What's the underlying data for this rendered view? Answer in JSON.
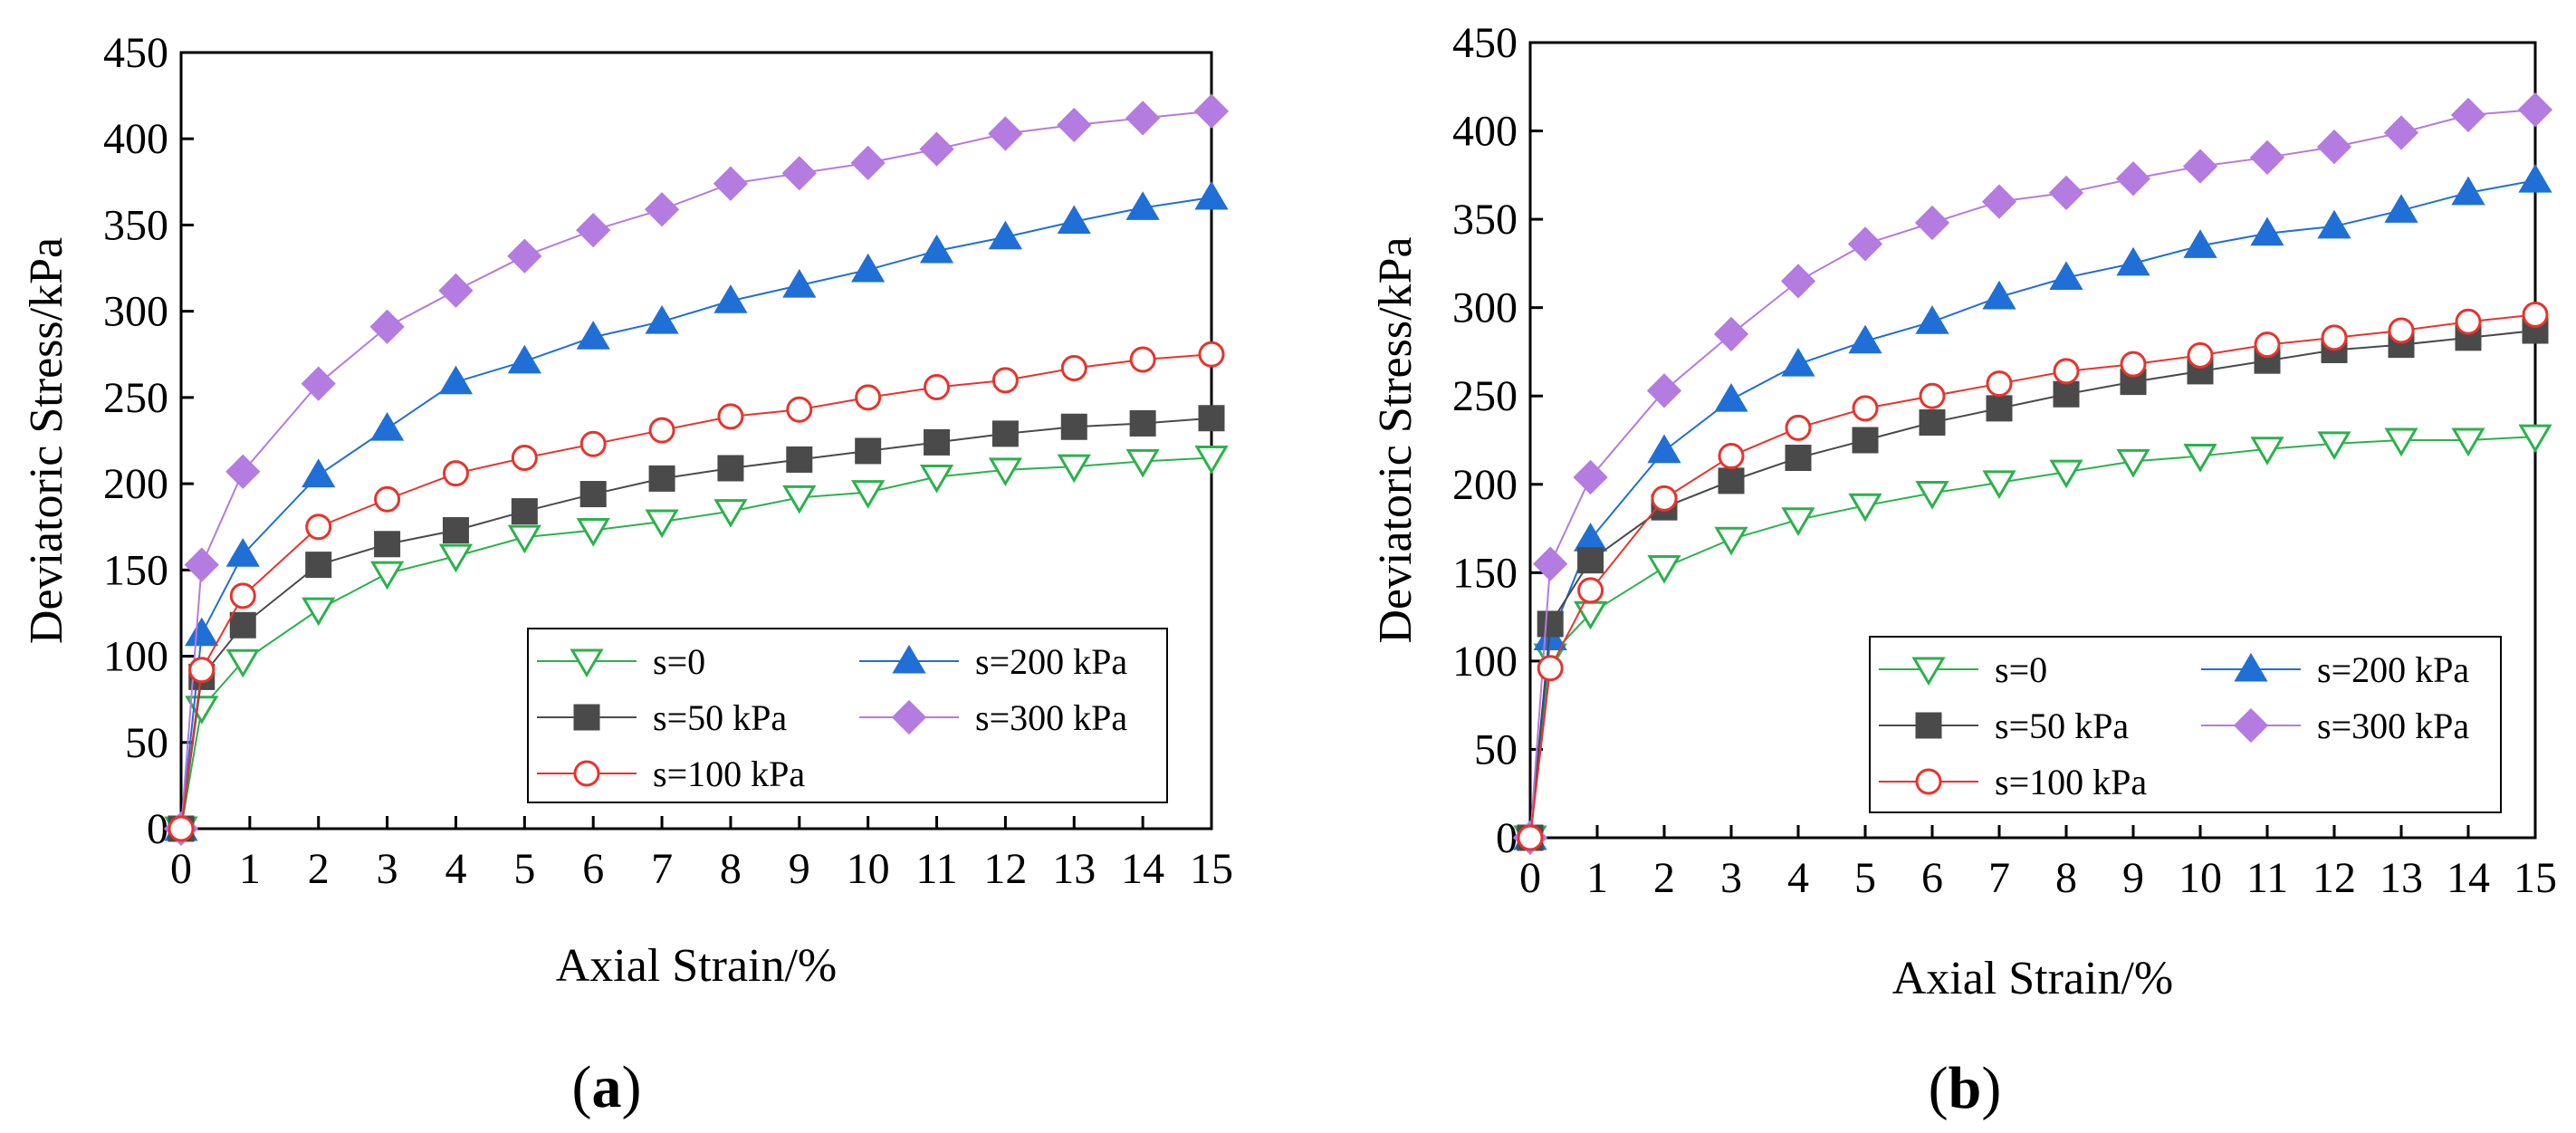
{
  "chart_data": [
    {
      "panel": "a",
      "type": "line",
      "xlabel": "Axial Strain/%",
      "ylabel": "Deviatoric Stress/kPa",
      "xlim": [
        0,
        15
      ],
      "ylim": [
        0,
        450
      ],
      "xticks": [
        "0",
        "1",
        "2",
        "3",
        "4",
        "5",
        "6",
        "7",
        "8",
        "9",
        "10",
        "11",
        "12",
        "13",
        "14",
        "15"
      ],
      "yticks": [
        "0",
        "50",
        "100",
        "150",
        "200",
        "250",
        "300",
        "350",
        "400",
        "450"
      ],
      "legend_position": "bottom-right",
      "legend_columns": 2,
      "x": [
        0,
        0.3,
        0.9,
        2,
        3,
        4,
        5,
        6,
        7,
        8,
        9,
        10,
        11,
        12,
        13,
        14,
        15
      ],
      "series": [
        {
          "name": "s=0",
          "marker": "triangle-down-open",
          "color": "#2bb24c",
          "values": [
            0,
            70,
            97,
            127,
            148,
            158,
            169,
            173,
            178,
            184,
            192,
            195,
            204,
            208,
            210,
            213,
            215
          ]
        },
        {
          "name": "s=200 kPa",
          "marker": "triangle-up-filled",
          "color": "#1f6fd6",
          "values": [
            0,
            113,
            159,
            205,
            232,
            259,
            271,
            285,
            294,
            306,
            315,
            324,
            335,
            343,
            352,
            360,
            366
          ]
        },
        {
          "name": "s=50 kPa",
          "marker": "square-filled",
          "color": "#4a4a4a",
          "values": [
            0,
            88,
            118,
            153,
            165,
            173,
            184,
            194,
            203,
            209,
            214,
            219,
            224,
            229,
            233,
            235,
            238
          ]
        },
        {
          "name": "s=300 kPa",
          "marker": "diamond-filled",
          "color": "#b47be0",
          "values": [
            0,
            153,
            207,
            258,
            291,
            312,
            332,
            347,
            359,
            374,
            380,
            386,
            394,
            403,
            408,
            412,
            416
          ]
        },
        {
          "name": "s=100 kPa",
          "marker": "circle-open",
          "color": "#e8332c",
          "values": [
            0,
            92,
            135,
            175,
            191,
            206,
            215,
            223,
            231,
            239,
            243,
            250,
            256,
            260,
            267,
            272,
            275
          ]
        }
      ],
      "caption": "a"
    },
    {
      "panel": "b",
      "type": "line",
      "xlabel": "Axial Strain/%",
      "ylabel": "Deviatoric Stress/kPa",
      "xlim": [
        0,
        15
      ],
      "ylim": [
        0,
        450
      ],
      "xticks": [
        "0",
        "1",
        "2",
        "3",
        "4",
        "5",
        "6",
        "7",
        "8",
        "9",
        "10",
        "11",
        "12",
        "13",
        "14",
        "15"
      ],
      "yticks": [
        "0",
        "50",
        "100",
        "150",
        "200",
        "250",
        "300",
        "350",
        "400",
        "450"
      ],
      "legend_position": "bottom-right",
      "legend_columns": 2,
      "x": [
        0,
        0.3,
        0.9,
        2,
        3,
        4,
        5,
        6,
        7,
        8,
        9,
        10,
        11,
        12,
        13,
        14,
        15
      ],
      "series": [
        {
          "name": "s=0",
          "marker": "triangle-down-open",
          "color": "#2bb24c",
          "values": [
            0,
            103,
            127,
            153,
            169,
            180,
            188,
            195,
            201,
            207,
            213,
            216,
            220,
            223,
            225,
            225,
            227
          ]
        },
        {
          "name": "s=200 kPa",
          "marker": "triangle-up-filled",
          "color": "#1f6fd6",
          "values": [
            0,
            113,
            169,
            219,
            248,
            268,
            281,
            292,
            306,
            317,
            325,
            335,
            342,
            346,
            355,
            365,
            372
          ]
        },
        {
          "name": "s=50 kPa",
          "marker": "square-filled",
          "color": "#4a4a4a",
          "values": [
            0,
            121,
            157,
            187,
            202,
            215,
            225,
            235,
            243,
            251,
            258,
            264,
            270,
            276,
            279,
            283,
            287
          ]
        },
        {
          "name": "s=300 kPa",
          "marker": "diamond-filled",
          "color": "#b47be0",
          "values": [
            0,
            155,
            204,
            253,
            285,
            315,
            336,
            348,
            360,
            365,
            373,
            380,
            385,
            391,
            399,
            409,
            412
          ]
        },
        {
          "name": "s=100 kPa",
          "marker": "circle-open",
          "color": "#e8332c",
          "values": [
            0,
            96,
            140,
            192,
            216,
            232,
            243,
            250,
            257,
            264,
            268,
            273,
            279,
            283,
            287,
            292,
            296
          ]
        }
      ],
      "caption": "b"
    }
  ]
}
